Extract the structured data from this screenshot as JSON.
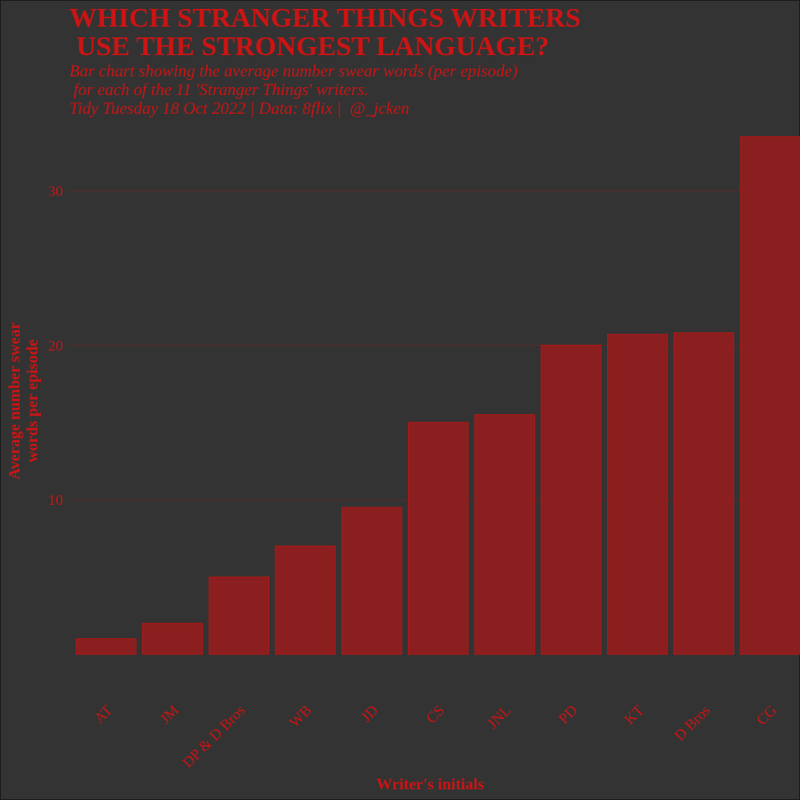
{
  "title": "WHICH STRANGER THINGS WRITERS\n USE THE STRONGEST LANGUAGE?",
  "subtitle": "Bar chart showing the average number swear words (per episode)\n for each of the 11 'Stranger Things' writers.\nTidy Tuesday 18 Oct 2022 | Data: 8flix |  @_jcken",
  "colors": {
    "background": "#333333",
    "bar_fill": "#8b1e1e",
    "bar_stroke": "#b01818",
    "text": "#cc1414",
    "grid": "#5a2a2a"
  },
  "chart_data": {
    "type": "bar",
    "categories": [
      "AT",
      "JM",
      "DP & D Bros",
      "WB",
      "JD",
      "CS",
      "JNL",
      "PD",
      "KT",
      "D Bros",
      "CG"
    ],
    "values": [
      1.0,
      2.0,
      5.0,
      7.0,
      9.5,
      15.0,
      15.5,
      20.0,
      20.7,
      20.8,
      33.5
    ],
    "xlabel": "Writer's initials",
    "ylabel": "Average number swear\nwords per episode",
    "yticks": [
      10,
      20,
      30
    ],
    "ylim": [
      0,
      34
    ],
    "grid": true,
    "legend": "none"
  }
}
